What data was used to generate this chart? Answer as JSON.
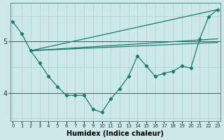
{
  "xlabel": "Humidex (Indice chaleur)",
  "x_ticks": [
    0,
    1,
    2,
    3,
    4,
    5,
    6,
    7,
    8,
    9,
    10,
    11,
    12,
    13,
    14,
    15,
    16,
    17,
    18,
    19,
    20,
    21,
    22,
    23
  ],
  "y_ticks": [
    4,
    5
  ],
  "xlim": [
    -0.3,
    23.3
  ],
  "ylim": [
    3.45,
    5.75
  ],
  "bg_color": "#cce8e8",
  "grid_color": "#aad0d0",
  "line_color": "#1a7a6e",
  "red_line_y": 4.0,
  "red_line2_y": 5.0,
  "red_line_color": "#cc2222",
  "series0": [
    5.38,
    5.15,
    4.82,
    4.58,
    4.32,
    4.12,
    3.95,
    3.95,
    3.95,
    3.68,
    3.62,
    3.88,
    4.08,
    4.32,
    4.72,
    4.52,
    4.32,
    4.38,
    4.42,
    4.52,
    4.48,
    5.05,
    5.48,
    5.62
  ],
  "line1": [
    [
      2,
      23
    ],
    [
      4.82,
      5.62
    ]
  ],
  "line2": [
    [
      2,
      23
    ],
    [
      4.82,
      5.05
    ]
  ],
  "line3": [
    [
      2,
      23
    ],
    [
      4.82,
      4.98
    ]
  ]
}
